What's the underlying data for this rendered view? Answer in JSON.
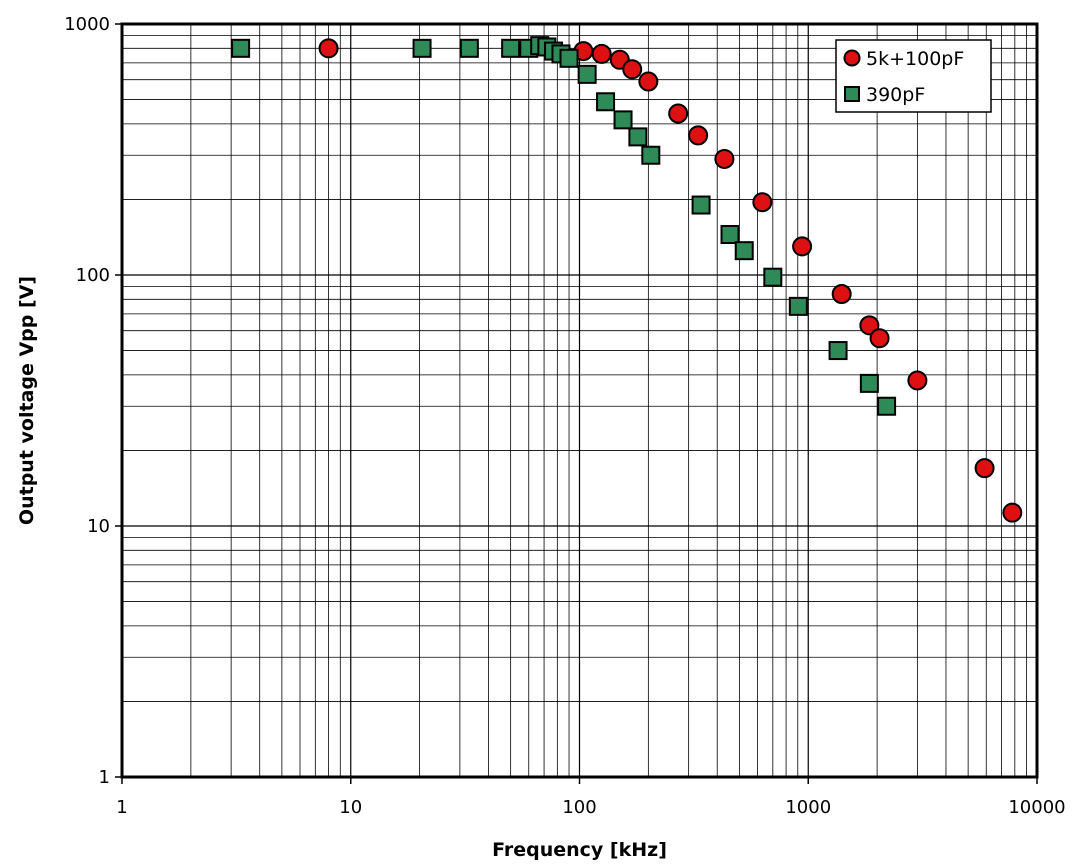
{
  "chart_data": {
    "type": "scatter",
    "title": "",
    "xlabel": "Frequency [kHz]",
    "ylabel": "Output voltage Vpp [V]",
    "x_scale": "log",
    "y_scale": "log",
    "xlim": [
      1,
      10000
    ],
    "ylim": [
      1,
      1000
    ],
    "x_ticks": [
      1,
      10,
      100,
      1000,
      10000
    ],
    "x_tick_labels": [
      "1",
      "10",
      "100",
      "1000",
      "10000"
    ],
    "y_ticks": [
      1,
      10,
      100,
      1000
    ],
    "y_tick_labels": [
      "1",
      "10",
      "100",
      "1000"
    ],
    "grid": "major and minor",
    "legend_position": "top-right",
    "series": [
      {
        "name": "5k+100pF",
        "marker": "circle",
        "color": "#dd1111",
        "points": [
          [
            8,
            800
          ],
          [
            104,
            780
          ],
          [
            125,
            760
          ],
          [
            150,
            720
          ],
          [
            170,
            660
          ],
          [
            200,
            590
          ],
          [
            270,
            440
          ],
          [
            330,
            360
          ],
          [
            430,
            290
          ],
          [
            630,
            195
          ],
          [
            940,
            130
          ],
          [
            1400,
            84
          ],
          [
            1850,
            63
          ],
          [
            2050,
            56
          ],
          [
            3000,
            38
          ],
          [
            5900,
            17
          ],
          [
            7800,
            11.3
          ]
        ]
      },
      {
        "name": "390pF",
        "marker": "square",
        "color": "#2e8b57",
        "points": [
          [
            3.3,
            800
          ],
          [
            20.5,
            800
          ],
          [
            33,
            800
          ],
          [
            50,
            800
          ],
          [
            60,
            800
          ],
          [
            67,
            820
          ],
          [
            72,
            810
          ],
          [
            77,
            780
          ],
          [
            83,
            760
          ],
          [
            90,
            730
          ],
          [
            108,
            630
          ],
          [
            130,
            490
          ],
          [
            155,
            415
          ],
          [
            180,
            355
          ],
          [
            205,
            300
          ],
          [
            340,
            190
          ],
          [
            455,
            145
          ],
          [
            525,
            125
          ],
          [
            700,
            98
          ],
          [
            905,
            75
          ],
          [
            1350,
            50
          ],
          [
            1850,
            37
          ],
          [
            2200,
            30
          ]
        ]
      }
    ]
  }
}
